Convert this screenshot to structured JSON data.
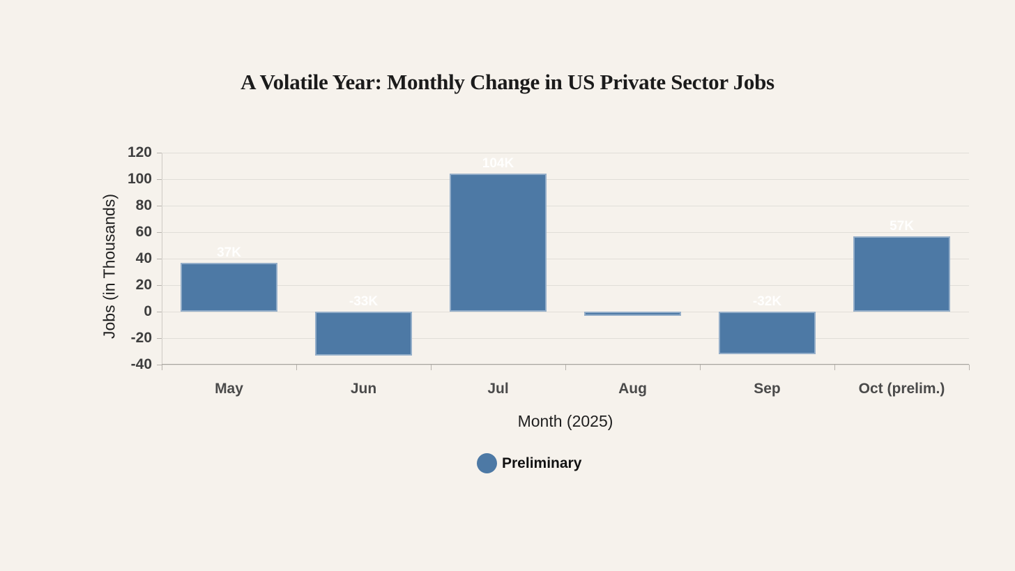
{
  "chart_data": {
    "type": "bar",
    "title": "A Volatile Year: Monthly Change in US Private Sector Jobs",
    "xlabel": "Month (2025)",
    "ylabel": "Jobs (in Thousands)",
    "categories": [
      "May",
      "Jun",
      "Jul",
      "Aug",
      "Sep",
      "Oct (prelim.)"
    ],
    "values": [
      37,
      -33,
      104,
      -3,
      -32,
      57
    ],
    "bar_labels": [
      "37K",
      "-33K",
      "104K",
      "",
      "-32K",
      "57K"
    ],
    "ylim": [
      -40,
      120
    ],
    "yticks": [
      120,
      100,
      80,
      60,
      40,
      20,
      0,
      -20,
      -40
    ],
    "grid": true,
    "legend": {
      "position": "bottom",
      "entries": [
        {
          "label": "Preliminary",
          "marker": "circle",
          "color": "#4d79a5"
        }
      ]
    },
    "colors": {
      "background": "#f6f2ec",
      "bar": "#4d79a5",
      "grid": "#e1ded8",
      "axis": "#a8a49e",
      "bar_label_text": "#ffffff",
      "tick_text": "#3e3e3e",
      "title_text": "#1b1b1b"
    }
  }
}
